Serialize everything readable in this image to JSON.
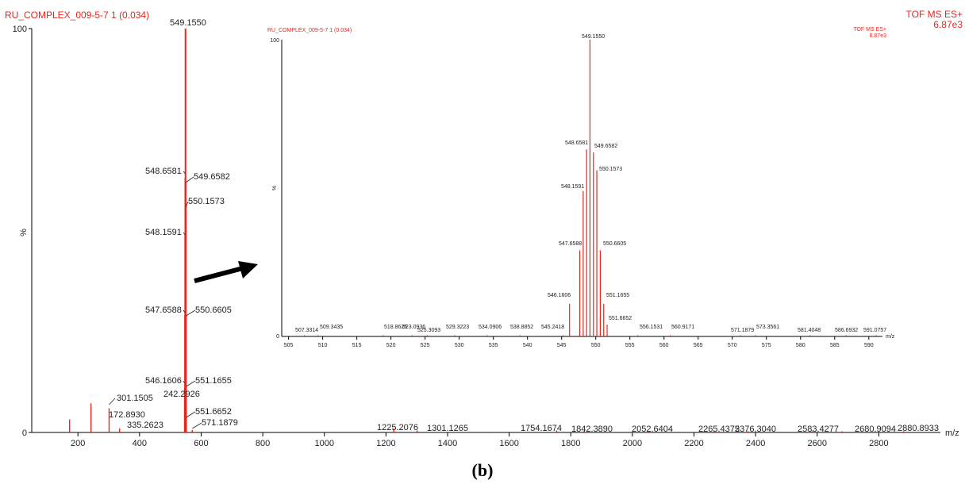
{
  "caption": "(b)",
  "colors": {
    "spectrum": "#e8261e",
    "axis": "#000000",
    "label": "#222222"
  },
  "chart_data": [
    {
      "type": "bar",
      "title": "RU_COMPLEX_009-5-7 1 (0.034)",
      "header_right_line1": "TOF MS ES+",
      "header_right_line2": "6.87e3",
      "xlabel": "m/z",
      "ylabel": "%",
      "xlim": [
        50,
        3000
      ],
      "ylim": [
        0,
        100
      ],
      "xticks": [
        200,
        400,
        600,
        800,
        1000,
        1200,
        1400,
        1600,
        1800,
        2000,
        2200,
        2400,
        2600,
        2800
      ],
      "yticks": [
        0,
        100
      ],
      "peaks": [
        {
          "mz": 549.155,
          "intensity": 100,
          "label": "549.1550"
        },
        {
          "mz": 548.6581,
          "intensity": 63,
          "label": "548.6581"
        },
        {
          "mz": 549.6582,
          "intensity": 62,
          "label": "549.6582"
        },
        {
          "mz": 550.1573,
          "intensity": 56,
          "label": "550.1573"
        },
        {
          "mz": 548.1591,
          "intensity": 49,
          "label": "548.1591"
        },
        {
          "mz": 547.6588,
          "intensity": 29,
          "label": "547.6588"
        },
        {
          "mz": 550.6605,
          "intensity": 29,
          "label": "550.6605"
        },
        {
          "mz": 546.1606,
          "intensity": 11,
          "label": "546.1606"
        },
        {
          "mz": 551.1655,
          "intensity": 11,
          "label": "551.1655"
        },
        {
          "mz": 551.6652,
          "intensity": 4,
          "label": "551.6652"
        },
        {
          "mz": 571.1879,
          "intensity": 0.6,
          "label": "571.1879"
        },
        {
          "mz": 242.2926,
          "intensity": 7.2,
          "label": "242.2926"
        },
        {
          "mz": 301.1505,
          "intensity": 6.0,
          "label": "301.1505"
        },
        {
          "mz": 172.893,
          "intensity": 3.2,
          "label": "172.8930"
        },
        {
          "mz": 335.2623,
          "intensity": 1.0,
          "label": "335.2623"
        },
        {
          "mz": 1225.2076,
          "intensity": 1.0,
          "label": "1225.2076"
        },
        {
          "mz": 1301.1265,
          "intensity": 0.5,
          "label": "1301.1265"
        },
        {
          "mz": 1754.1674,
          "intensity": 0.5,
          "label": "1754.1674"
        },
        {
          "mz": 1842.389,
          "intensity": 0.3,
          "label": "1842.3890"
        },
        {
          "mz": 2052.6404,
          "intensity": 0.3,
          "label": "2052.6404"
        },
        {
          "mz": 2265.4375,
          "intensity": 0.3,
          "label": "2265.4375"
        },
        {
          "mz": 2376.304,
          "intensity": 0.3,
          "label": "2376.3040"
        },
        {
          "mz": 2583.4277,
          "intensity": 0.3,
          "label": "2583.4277"
        },
        {
          "mz": 2680.9094,
          "intensity": 0.3,
          "label": "2680.9094"
        },
        {
          "mz": 2880.8933,
          "intensity": 0.3,
          "label": "2880.8933"
        }
      ]
    },
    {
      "type": "bar",
      "title": "RU_COMPLEX_009-5-7 1 (0.034)",
      "header_right_line1": "TOF MS ES+",
      "header_right_line2": "6.87e3",
      "xlabel": "m/z",
      "ylabel": "%",
      "xlim": [
        504,
        592
      ],
      "ylim": [
        0,
        100
      ],
      "xticks": [
        505,
        510,
        515,
        520,
        525,
        530,
        535,
        540,
        545,
        550,
        555,
        560,
        565,
        570,
        575,
        580,
        585,
        590
      ],
      "yticks": [
        0,
        100
      ],
      "peaks": [
        {
          "mz": 549.155,
          "intensity": 100,
          "label": "549.1550"
        },
        {
          "mz": 548.6581,
          "intensity": 63,
          "label": "548.6581"
        },
        {
          "mz": 549.6582,
          "intensity": 62,
          "label": "549.6582"
        },
        {
          "mz": 550.1573,
          "intensity": 56,
          "label": "550.1573"
        },
        {
          "mz": 548.1591,
          "intensity": 49,
          "label": "548.1591"
        },
        {
          "mz": 547.6588,
          "intensity": 29,
          "label": "547.6588"
        },
        {
          "mz": 550.6605,
          "intensity": 29,
          "label": "550.6605"
        },
        {
          "mz": 546.1606,
          "intensity": 11,
          "label": "546.1606"
        },
        {
          "mz": 551.1655,
          "intensity": 11,
          "label": "551.1655"
        },
        {
          "mz": 551.6652,
          "intensity": 4,
          "label": "551.6652"
        },
        {
          "mz": 507.3314,
          "intensity": 0.4,
          "label": "507.3314"
        },
        {
          "mz": 509.3435,
          "intensity": 0.4,
          "label": "509.3435"
        },
        {
          "mz": 518.8626,
          "intensity": 0.4,
          "label": "518.8626"
        },
        {
          "mz": 523.0936,
          "intensity": 0.4,
          "label": "523.0936"
        },
        {
          "mz": 525.3093,
          "intensity": 0.4,
          "label": "525.3093"
        },
        {
          "mz": 529.3223,
          "intensity": 0.4,
          "label": "529.3223"
        },
        {
          "mz": 534.0906,
          "intensity": 0.4,
          "label": "534.0906"
        },
        {
          "mz": 538.8852,
          "intensity": 0.4,
          "label": "538.8852"
        },
        {
          "mz": 545.2418,
          "intensity": 0.4,
          "label": "545.2418"
        },
        {
          "mz": 556.1531,
          "intensity": 0.4,
          "label": "556.1531"
        },
        {
          "mz": 560.9171,
          "intensity": 0.4,
          "label": "560.9171"
        },
        {
          "mz": 571.1879,
          "intensity": 0.4,
          "label": "571.1879"
        },
        {
          "mz": 573.3561,
          "intensity": 0.4,
          "label": "573.3561"
        },
        {
          "mz": 581.4048,
          "intensity": 0.4,
          "label": "581.4048"
        },
        {
          "mz": 586.6932,
          "intensity": 0.4,
          "label": "586.6932"
        },
        {
          "mz": 591.0757,
          "intensity": 0.4,
          "label": "591.0757"
        }
      ]
    }
  ]
}
